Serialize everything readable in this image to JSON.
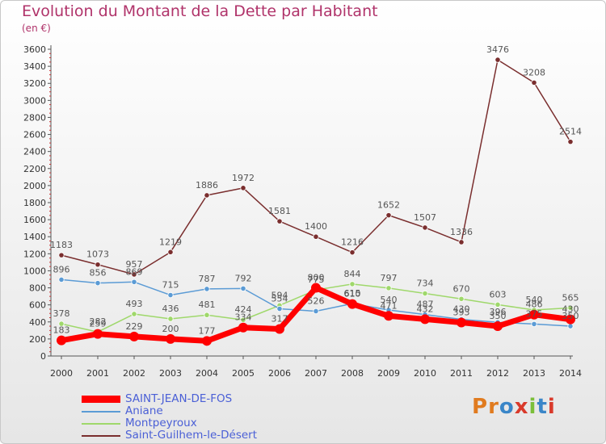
{
  "title": "Evolution du Montant de la Dette par Habitant",
  "unit": "(en €)",
  "logo": "Proxiti",
  "chart_data": {
    "type": "line",
    "x": [
      "2000",
      "2001",
      "2002",
      "2003",
      "2004",
      "2005",
      "2006",
      "2007",
      "2008",
      "2009",
      "2010",
      "2011",
      "2012",
      "2013",
      "2014"
    ],
    "ylim": [
      0,
      3600
    ],
    "yticks": [
      0,
      200,
      400,
      600,
      800,
      1000,
      1200,
      1400,
      1600,
      1800,
      2000,
      2200,
      2400,
      2600,
      2800,
      3000,
      3200,
      3400,
      3600
    ],
    "grid": false,
    "legend": "bottom-left",
    "series": [
      {
        "name": "SAINT-JEAN-DE-FOS",
        "color": "#ff0000",
        "width": 7,
        "values": [
          183,
          259,
          229,
          200,
          177,
          334,
          317,
          800,
          610,
          471,
          432,
          393,
          350,
          486,
          430
        ]
      },
      {
        "name": "Aniane",
        "color": "#5b9bd5",
        "width": 1.5,
        "values": [
          896,
          856,
          869,
          715,
          787,
          792,
          554,
          526,
          615,
          540,
          487,
          430,
          396,
          375,
          350
        ]
      },
      {
        "name": "Montpeyroux",
        "color": "#9fd86b",
        "width": 1.5,
        "values": [
          378,
          282,
          493,
          436,
          481,
          424,
          594,
          775,
          844,
          797,
          734,
          670,
          603,
          540,
          565
        ]
      },
      {
        "name": "Saint-Guilhem-le-Désert",
        "color": "#7a2e2e",
        "width": 1.5,
        "values": [
          1183,
          1073,
          957,
          1219,
          1886,
          1972,
          1581,
          1400,
          1216,
          1652,
          1507,
          1336,
          3476,
          3208,
          2514
        ]
      }
    ]
  }
}
